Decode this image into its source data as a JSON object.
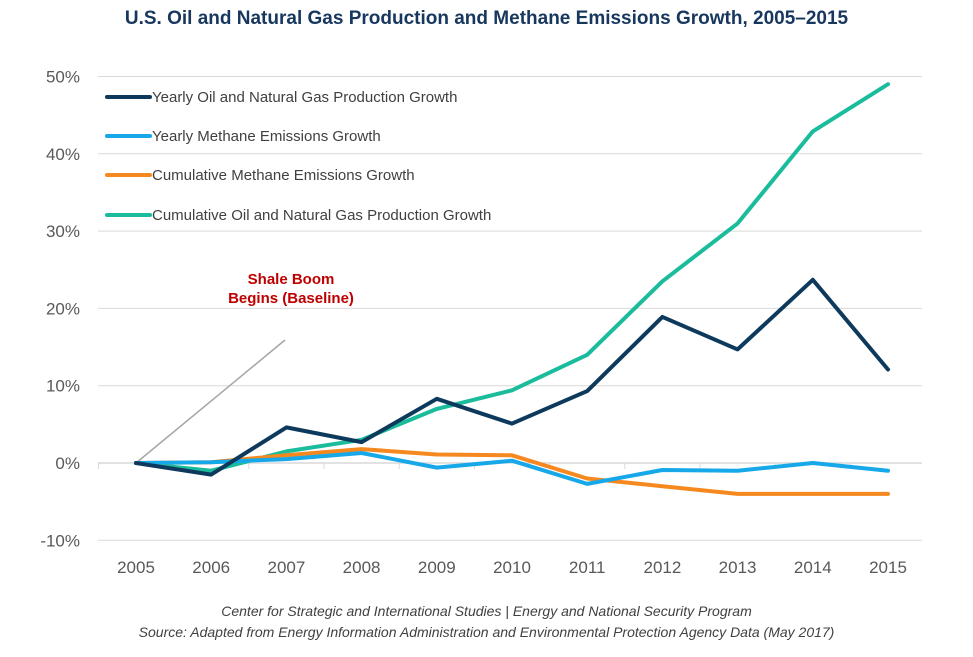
{
  "chart_data": {
    "type": "line",
    "title": "U.S. Oil and Natural Gas Production and Methane Emissions Growth, 2005–2015",
    "x": [
      "2005",
      "2006",
      "2007",
      "2008",
      "2009",
      "2010",
      "2011",
      "2012",
      "2013",
      "2014",
      "2015"
    ],
    "ylim": [
      -10,
      50
    ],
    "yticks": [
      -10,
      0,
      10,
      20,
      30,
      40,
      50
    ],
    "ytick_labels": [
      "-10%",
      "0%",
      "10%",
      "20%",
      "30%",
      "40%",
      "50%"
    ],
    "grid": true,
    "legend_position": "top-left",
    "series": [
      {
        "name": "Yearly Oil and Natural Gas Production Growth",
        "color": "#0d3a5c",
        "values": [
          0,
          -1.5,
          4.6,
          2.7,
          8.3,
          5.1,
          9.3,
          18.9,
          14.7,
          23.7,
          12.1
        ]
      },
      {
        "name": "Yearly Methane Emissions Growth",
        "color": "#16a8e8",
        "values": [
          0,
          0.1,
          0.5,
          1.3,
          -0.6,
          0.3,
          -2.7,
          -0.9,
          -1.0,
          0.0,
          -1.0
        ]
      },
      {
        "name": "Cumulative Methane Emissions Growth",
        "color": "#f5891f",
        "values": [
          0,
          0.1,
          1.0,
          1.8,
          1.1,
          1.0,
          -2.0,
          -3.0,
          -4.0,
          -4.0,
          -4.0
        ]
      },
      {
        "name": "Cumulative Oil and Natural Gas Production Growth",
        "color": "#1abc9c",
        "values": [
          0,
          -1.0,
          1.5,
          3.0,
          7.0,
          9.4,
          14.0,
          23.5,
          31.0,
          42.9,
          49.0
        ]
      }
    ],
    "annotation": {
      "lines": [
        "Shale Boom",
        "Begins (Baseline)"
      ],
      "color": "#c00000"
    }
  },
  "source": {
    "line1": "Center for Strategic and International Studies | Energy and National Security Program",
    "line2": "Source: Adapted from Energy Information Administration and Environmental Protection Agency Data (May 2017)"
  }
}
